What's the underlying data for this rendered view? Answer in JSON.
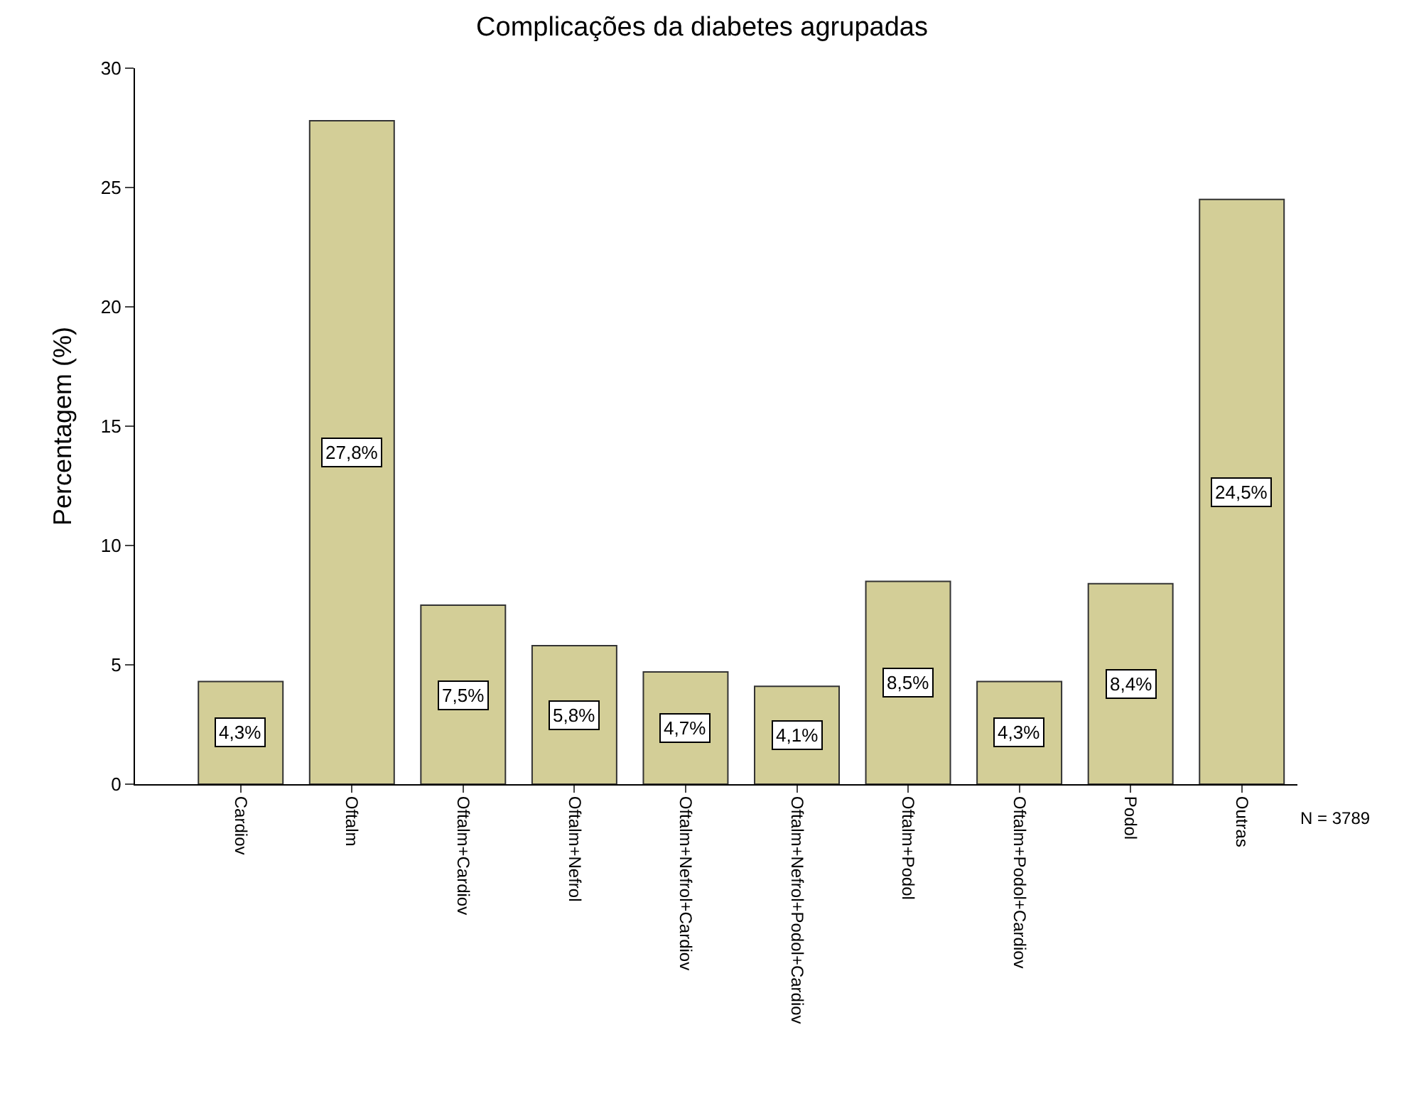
{
  "chart_data": {
    "type": "bar",
    "title": "Complicações da diabetes agrupadas",
    "ylabel": "Percentagem (%)",
    "categories": [
      "Cardiov",
      "Oftalm",
      "Oftalm+Cardiov",
      "Oftalm+Nefrol",
      "Oftalm+Nefrol+Cardiov",
      "Oftalm+Nefrol+Podol+Cardiov",
      "Oftalm+Podol",
      "Oftalm+Podol+Cardiov",
      "Podol",
      "Outras"
    ],
    "values": [
      4.3,
      27.8,
      7.5,
      5.8,
      4.7,
      4.1,
      8.5,
      4.3,
      8.4,
      24.5
    ],
    "value_labels": [
      "4,3%",
      "27,8%",
      "7,5%",
      "5,8%",
      "4,7%",
      "4,1%",
      "8,5%",
      "4,3%",
      "8,4%",
      "24,5%"
    ],
    "color": "#d3ce97",
    "ylim": [
      0,
      30
    ],
    "yticks": [
      0,
      5,
      10,
      15,
      20,
      25,
      30
    ],
    "annotations": [
      "N = 3789"
    ]
  }
}
